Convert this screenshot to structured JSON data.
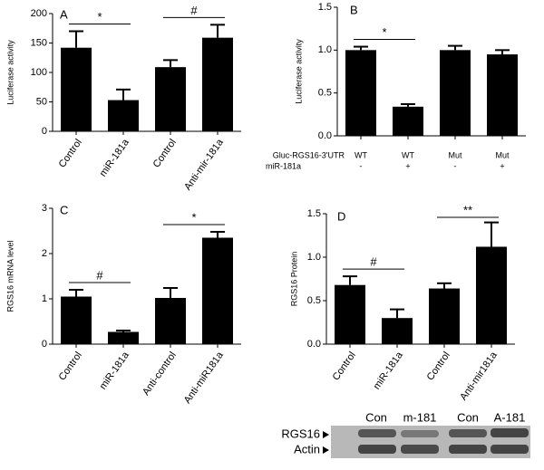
{
  "chart_data": [
    {
      "type": "bar",
      "panel": "A",
      "ylabel": "Luciferase activity",
      "categories": [
        "Control",
        "miR-181a",
        "Control",
        "Anti-mir-181a"
      ],
      "values": [
        142,
        53,
        109,
        159
      ],
      "errors": [
        28,
        18,
        12,
        22
      ],
      "color": "#000000",
      "ylim": [
        0,
        200
      ],
      "yticks": [
        0,
        50,
        100,
        150,
        200
      ],
      "annotations": [
        "*",
        "#"
      ]
    },
    {
      "type": "bar",
      "panel": "B",
      "ylabel": "Luciferase activity",
      "categories": [
        "WT",
        "WT",
        "Mut",
        "Mut"
      ],
      "category_label": "Gluc-RGS16-3'UTR",
      "subcategories": [
        "-",
        "+",
        "-",
        "+"
      ],
      "subcategory_label": "miR-181a",
      "values": [
        1.0,
        0.34,
        1.0,
        0.95
      ],
      "errors": [
        0.04,
        0.03,
        0.05,
        0.05
      ],
      "color": "#000000",
      "ylim": [
        0,
        1.5
      ],
      "yticks": [
        {
          "value": 0,
          "label": "0.0"
        },
        {
          "value": 0.5,
          "label": "0.5"
        },
        {
          "value": 1,
          "label": "1.0"
        },
        {
          "value": 1.5,
          "label": "1.5"
        }
      ],
      "annotations": [
        "*"
      ]
    },
    {
      "type": "bar",
      "panel": "C",
      "ylabel": "RGS16 mRNA level",
      "categories": [
        "Control",
        "miR-181a",
        "Anti-control",
        "Anti-miR181a"
      ],
      "values": [
        1.05,
        0.27,
        1.02,
        2.35
      ],
      "errors": [
        0.15,
        0.03,
        0.22,
        0.13
      ],
      "color": "#000000",
      "ylim": [
        0,
        3
      ],
      "yticks": [
        0,
        1,
        2,
        3
      ],
      "annotations": [
        "#",
        "*"
      ]
    },
    {
      "type": "bar",
      "panel": "D",
      "ylabel": "RGS16 Protein",
      "categories": [
        "Control",
        "miR-181a",
        "Control",
        "Anti-mir181a"
      ],
      "values": [
        0.68,
        0.3,
        0.64,
        1.12
      ],
      "errors": [
        0.1,
        0.1,
        0.06,
        0.28
      ],
      "color": "#000000",
      "ylim": [
        0,
        1.5
      ],
      "yticks": [
        {
          "value": 0,
          "label": "0.0"
        },
        {
          "value": 0.5,
          "label": "0.5"
        },
        {
          "value": 1,
          "label": "1.0"
        },
        {
          "value": 1.5,
          "label": "1.5"
        }
      ],
      "annotations": [
        "#",
        "**"
      ]
    }
  ],
  "blot": {
    "lanes": [
      "Con",
      "m-181",
      "Con",
      "A-181"
    ],
    "rows": [
      "RGS16",
      "Actin"
    ]
  }
}
